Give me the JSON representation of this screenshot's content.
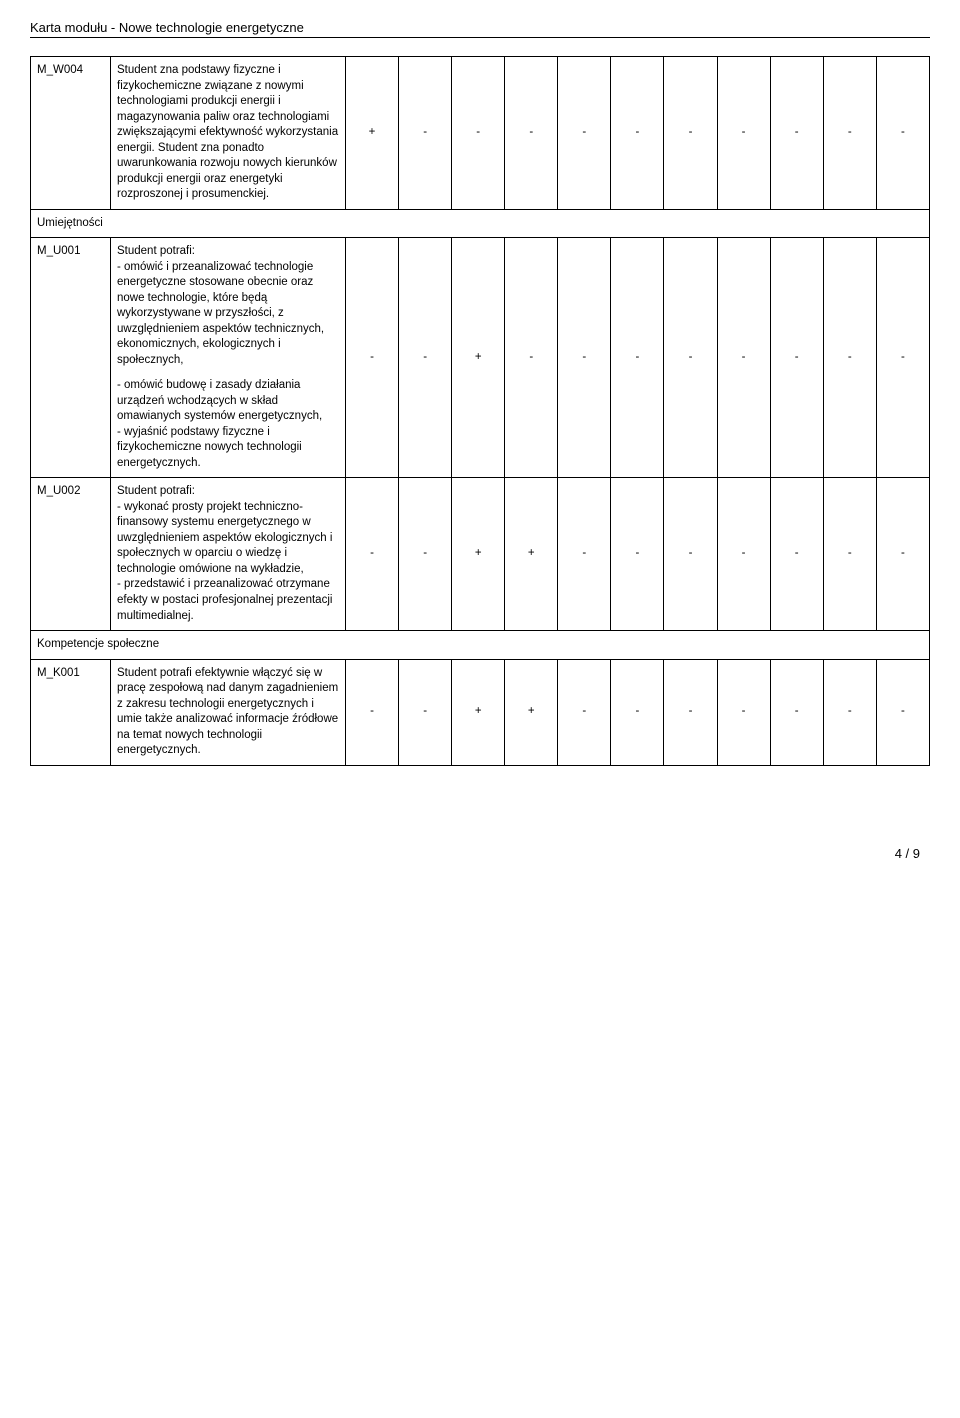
{
  "header": {
    "title": "Karta modułu - Nowe technologie energetyczne"
  },
  "rows": {
    "w004": {
      "code": "M_W004",
      "desc": "Student zna podstawy fizyczne i fizykochemiczne związane z nowymi technologiami produkcji energii i magazynowania paliw oraz technologiami zwiększającymi efektywność wykorzystania energii. Student zna ponadto uwarunkowania rozwoju nowych kierunków produkcji energii oraz energetyki rozproszonej i prosumenckiej.",
      "marks": [
        "+",
        "-",
        "-",
        "-",
        "-",
        "-",
        "-",
        "-",
        "-",
        "-",
        "-"
      ]
    },
    "section_um": {
      "label": "Umiejętności"
    },
    "u001": {
      "code": "M_U001",
      "desc1": "Student potrafi:\n- omówić i przeanalizować technologie energetyczne stosowane obecnie oraz nowe technologie, które będą wykorzystywane w przyszłości, z uwzględnieniem aspektów technicznych, ekonomicznych, ekologicznych i społecznych,",
      "desc2": "- omówić budowę i zasady działania urządzeń wchodzących w skład omawianych systemów energetycznych,\n- wyjaśnić podstawy fizyczne i fizykochemiczne nowych technologii energetycznych.",
      "marks": [
        "-",
        "-",
        "+",
        "-",
        "-",
        "-",
        "-",
        "-",
        "-",
        "-",
        "-"
      ]
    },
    "u002": {
      "code": "M_U002",
      "desc": "Student potrafi:\n- wykonać prosty projekt techniczno-finansowy systemu energetycznego w uwzględnieniem aspektów ekologicznych i społecznych w oparciu o wiedzę i technologie omówione na wykładzie,\n- przedstawić i przeanalizować otrzymane efekty w postaci profesjonalnej prezentacji multimedialnej.",
      "marks": [
        "-",
        "-",
        "+",
        "+",
        "-",
        "-",
        "-",
        "-",
        "-",
        "-",
        "-"
      ]
    },
    "section_ks": {
      "label": "Kompetencje społeczne"
    },
    "k001": {
      "code": "M_K001",
      "desc": "Student potrafi efektywnie włączyć się w pracę zespołową nad danym zagadnieniem z zakresu technologii energetycznych i umie także analizować informacje źródłowe na temat nowych technologii energetycznych.",
      "marks": [
        "-",
        "-",
        "+",
        "+",
        "-",
        "-",
        "-",
        "-",
        "-",
        "-",
        "-"
      ]
    }
  },
  "footer": {
    "page": "4 / 9"
  }
}
